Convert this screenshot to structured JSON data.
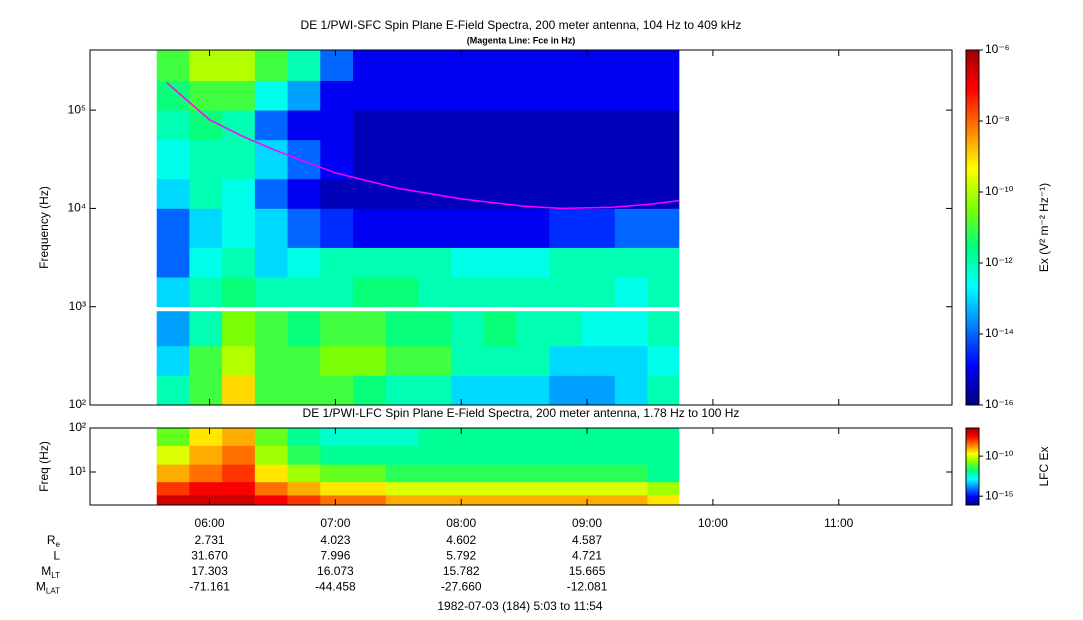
{
  "chart_data": [
    {
      "type": "spectrogram",
      "title": "DE 1/PWI-SFC  Spin Plane E-Field Spectra, 200 meter antenna, 104 Hz to 409 kHz",
      "subtitle": "(Magenta Line: Fce in Hz)",
      "ylabel": "Frequency (Hz)",
      "log_y": true,
      "ylim": [
        100,
        409000
      ],
      "yticks": [
        {
          "value": 100,
          "label": "10²"
        },
        {
          "value": 1000,
          "label": "10³"
        },
        {
          "value": 10000,
          "label": "10⁴"
        },
        {
          "value": 100000,
          "label": "10⁵"
        }
      ],
      "time_edges": [
        5.58,
        5.84,
        6.1,
        6.36,
        6.62,
        6.88,
        7.14,
        7.4,
        7.66,
        7.92,
        8.18,
        8.44,
        8.7,
        8.96,
        9.22,
        9.48,
        9.73
      ],
      "freq_edges": [
        100,
        200,
        400,
        900,
        1000,
        2000,
        4000,
        10000,
        20000,
        50000,
        100000,
        200000,
        409000
      ],
      "values": [
        [
          1e-12,
          1e-11,
          1e-09,
          1e-11,
          1e-11,
          1e-11,
          3.2e-12,
          1e-12,
          1e-12,
          1e-13,
          1e-13,
          1e-13,
          3.2e-14,
          3.2e-14,
          1e-13,
          1e-12
        ],
        [
          1e-13,
          1e-11,
          1e-10,
          1e-11,
          1e-11,
          3.2e-11,
          3.2e-11,
          1e-11,
          1e-11,
          1e-12,
          1e-12,
          1e-12,
          1e-13,
          1e-13,
          1e-13,
          3.2e-13
        ],
        [
          3.2e-14,
          1e-12,
          3.2e-11,
          1e-11,
          3.2e-12,
          1e-11,
          1e-11,
          3.2e-12,
          3.2e-12,
          1e-12,
          3.2e-12,
          1e-12,
          1e-12,
          3.2e-13,
          3.2e-13,
          1e-12
        ],
        [
          null,
          null,
          null,
          null,
          null,
          null,
          null,
          null,
          null,
          null,
          null,
          null,
          null,
          null,
          null,
          null
        ],
        [
          1e-13,
          1e-12,
          3.2e-12,
          1e-12,
          1e-12,
          1e-12,
          3.2e-12,
          3.2e-12,
          1e-12,
          1e-12,
          1e-12,
          1e-12,
          1e-12,
          1e-12,
          3.2e-13,
          1e-12
        ],
        [
          1e-14,
          3.2e-13,
          1e-12,
          1e-13,
          3.2e-13,
          1e-12,
          1e-12,
          1e-12,
          1e-12,
          3.2e-13,
          3.2e-13,
          3.2e-13,
          1e-12,
          1e-12,
          1e-12,
          1e-12
        ],
        [
          1e-14,
          1e-13,
          3.2e-13,
          1e-13,
          1e-14,
          3.2e-15,
          1e-15,
          1e-15,
          1e-15,
          1e-15,
          1e-15,
          1e-15,
          3.2e-15,
          3.2e-15,
          1e-14,
          1e-14
        ],
        [
          1e-13,
          1e-12,
          3.2e-13,
          1e-14,
          1e-15,
          3.2e-16,
          3.2e-16,
          3.2e-16,
          3.2e-16,
          3.2e-16,
          3.2e-16,
          3.2e-16,
          3.2e-16,
          3.2e-16,
          3.2e-16,
          3.2e-16
        ],
        [
          3.2e-13,
          1e-12,
          1e-12,
          1e-13,
          1e-14,
          1e-15,
          3.2e-16,
          3.2e-16,
          3.2e-16,
          3.2e-16,
          3.2e-16,
          3.2e-16,
          3.2e-16,
          3.2e-16,
          3.2e-16,
          3.2e-16
        ],
        [
          1e-12,
          3.2e-12,
          1e-12,
          1e-14,
          1e-15,
          1e-15,
          3.2e-16,
          3.2e-16,
          3.2e-16,
          3.2e-16,
          3.2e-16,
          3.2e-16,
          3.2e-16,
          3.2e-16,
          3.2e-16,
          3.2e-16
        ],
        [
          3.2e-12,
          1e-11,
          1e-11,
          3.2e-13,
          3.2e-14,
          1e-15,
          1e-15,
          1e-15,
          1e-15,
          1e-15,
          1e-15,
          1e-15,
          1e-15,
          1e-15,
          1e-15,
          1e-15
        ],
        [
          1e-11,
          1e-10,
          1e-10,
          1e-11,
          1e-12,
          1e-14,
          1e-15,
          1e-15,
          1e-15,
          1e-15,
          1e-15,
          1e-15,
          1e-15,
          1e-15,
          1e-15,
          1e-15
        ]
      ],
      "clim": [
        1e-16,
        1e-06
      ],
      "cticks": [
        {
          "value": 1e-06,
          "label": "10⁻⁶"
        },
        {
          "value": 1e-08,
          "label": "10⁻⁸"
        },
        {
          "value": 1e-10,
          "label": "10⁻¹⁰"
        },
        {
          "value": 1e-12,
          "label": "10⁻¹²"
        },
        {
          "value": 1e-14,
          "label": "10⁻¹⁴"
        },
        {
          "value": 1e-16,
          "label": "10⁻¹⁶"
        }
      ],
      "colorbar_label": "Ex (V² m⁻² Hz⁻¹)",
      "series": [
        {
          "color": "#ff00ff",
          "x": [
            5.66,
            6.0,
            6.25,
            6.5,
            7.0,
            7.5,
            8.0,
            8.5,
            8.8,
            9.2,
            9.5,
            9.73
          ],
          "values": [
            190000,
            80000,
            55000,
            40000,
            23000,
            16000,
            12500,
            10500,
            10000,
            10300,
            11000,
            12000
          ]
        }
      ]
    },
    {
      "type": "spectrogram",
      "title": "DE 1/PWI-LFC  Spin Plane E-Field Spectra, 200 meter antenna, 1.78 Hz to 100 Hz",
      "ylabel": "Freq (Hz)",
      "log_y": true,
      "ylim": [
        1.78,
        100
      ],
      "yticks": [
        {
          "value": 10,
          "label": "10¹"
        },
        {
          "value": 100,
          "label": "10²"
        }
      ],
      "time_edges": [
        5.58,
        5.84,
        6.1,
        6.36,
        6.62,
        6.88,
        7.14,
        7.4,
        7.66,
        7.92,
        8.18,
        8.44,
        8.7,
        8.96,
        9.22,
        9.48,
        9.73
      ],
      "freq_edges": [
        1.78,
        3,
        6,
        15,
        40,
        100
      ],
      "values": [
        [
          1e-07,
          1e-07,
          1e-07,
          3.2e-08,
          1e-08,
          3.2e-09,
          3.2e-09,
          1e-09,
          1e-09,
          1e-09,
          1e-09,
          1e-09,
          1e-09,
          1e-09,
          1e-09,
          3.2e-10
        ],
        [
          1e-08,
          3.2e-08,
          3.2e-08,
          3.2e-09,
          1e-09,
          3.2e-10,
          3.2e-10,
          1e-10,
          1e-10,
          1e-10,
          1e-10,
          1e-10,
          1e-10,
          1e-10,
          1e-10,
          3.2e-11
        ],
        [
          1e-09,
          3.2e-09,
          1e-08,
          3.2e-10,
          3.2e-11,
          1e-11,
          1e-11,
          3.2e-12,
          3.2e-12,
          3.2e-12,
          3.2e-12,
          3.2e-12,
          3.2e-12,
          3.2e-12,
          3.2e-12,
          1e-12
        ],
        [
          1e-10,
          1e-09,
          3.2e-09,
          3.2e-11,
          3.2e-12,
          1e-12,
          1e-12,
          1e-12,
          1e-12,
          1e-12,
          1e-12,
          1e-12,
          1e-12,
          1e-12,
          1e-12,
          1e-12
        ],
        [
          1e-11,
          3.2e-10,
          1e-09,
          1e-11,
          1e-12,
          3.2e-13,
          3.2e-13,
          3.2e-13,
          1e-12,
          1e-12,
          1e-12,
          1e-12,
          1e-12,
          1e-12,
          1e-12,
          1e-12
        ]
      ],
      "clim": [
        8e-17,
        3.2e-07
      ],
      "cticks": [
        {
          "value": 1e-10,
          "label": "10⁻¹⁰"
        },
        {
          "value": 1e-15,
          "label": "10⁻¹⁵"
        }
      ],
      "colorbar_label": "LFC Ex"
    }
  ],
  "colormap": [
    "#00007f",
    "#0000ff",
    "#0080ff",
    "#00ffff",
    "#00ff80",
    "#80ff00",
    "#ffff00",
    "#ff8000",
    "#ff0000",
    "#a00000"
  ],
  "time_axis": {
    "xlim": [
      5.05,
      11.9
    ],
    "xticks": [
      {
        "value": 6,
        "label": "06:00"
      },
      {
        "value": 7,
        "label": "07:00"
      },
      {
        "value": 8,
        "label": "08:00"
      },
      {
        "value": 9,
        "label": "09:00"
      },
      {
        "value": 10,
        "label": "10:00"
      },
      {
        "value": 11,
        "label": "11:00"
      }
    ],
    "caption": "1982-07-03 (184) 5:03 to 11:54"
  },
  "orbit": [
    {
      "label": "R",
      "sub": "e",
      "values": [
        "2.731",
        "4.023",
        "4.602",
        "4.587"
      ]
    },
    {
      "label": "L",
      "values": [
        "31.670",
        "7.996",
        "5.792",
        "4.721"
      ]
    },
    {
      "label": "M",
      "sub": "LT",
      "values": [
        "17.303",
        "16.073",
        "15.782",
        "15.665"
      ]
    },
    {
      "label": "M",
      "sub": "LAT",
      "values": [
        "-71.161",
        "-44.458",
        "-27.660",
        "-12.081"
      ]
    }
  ]
}
